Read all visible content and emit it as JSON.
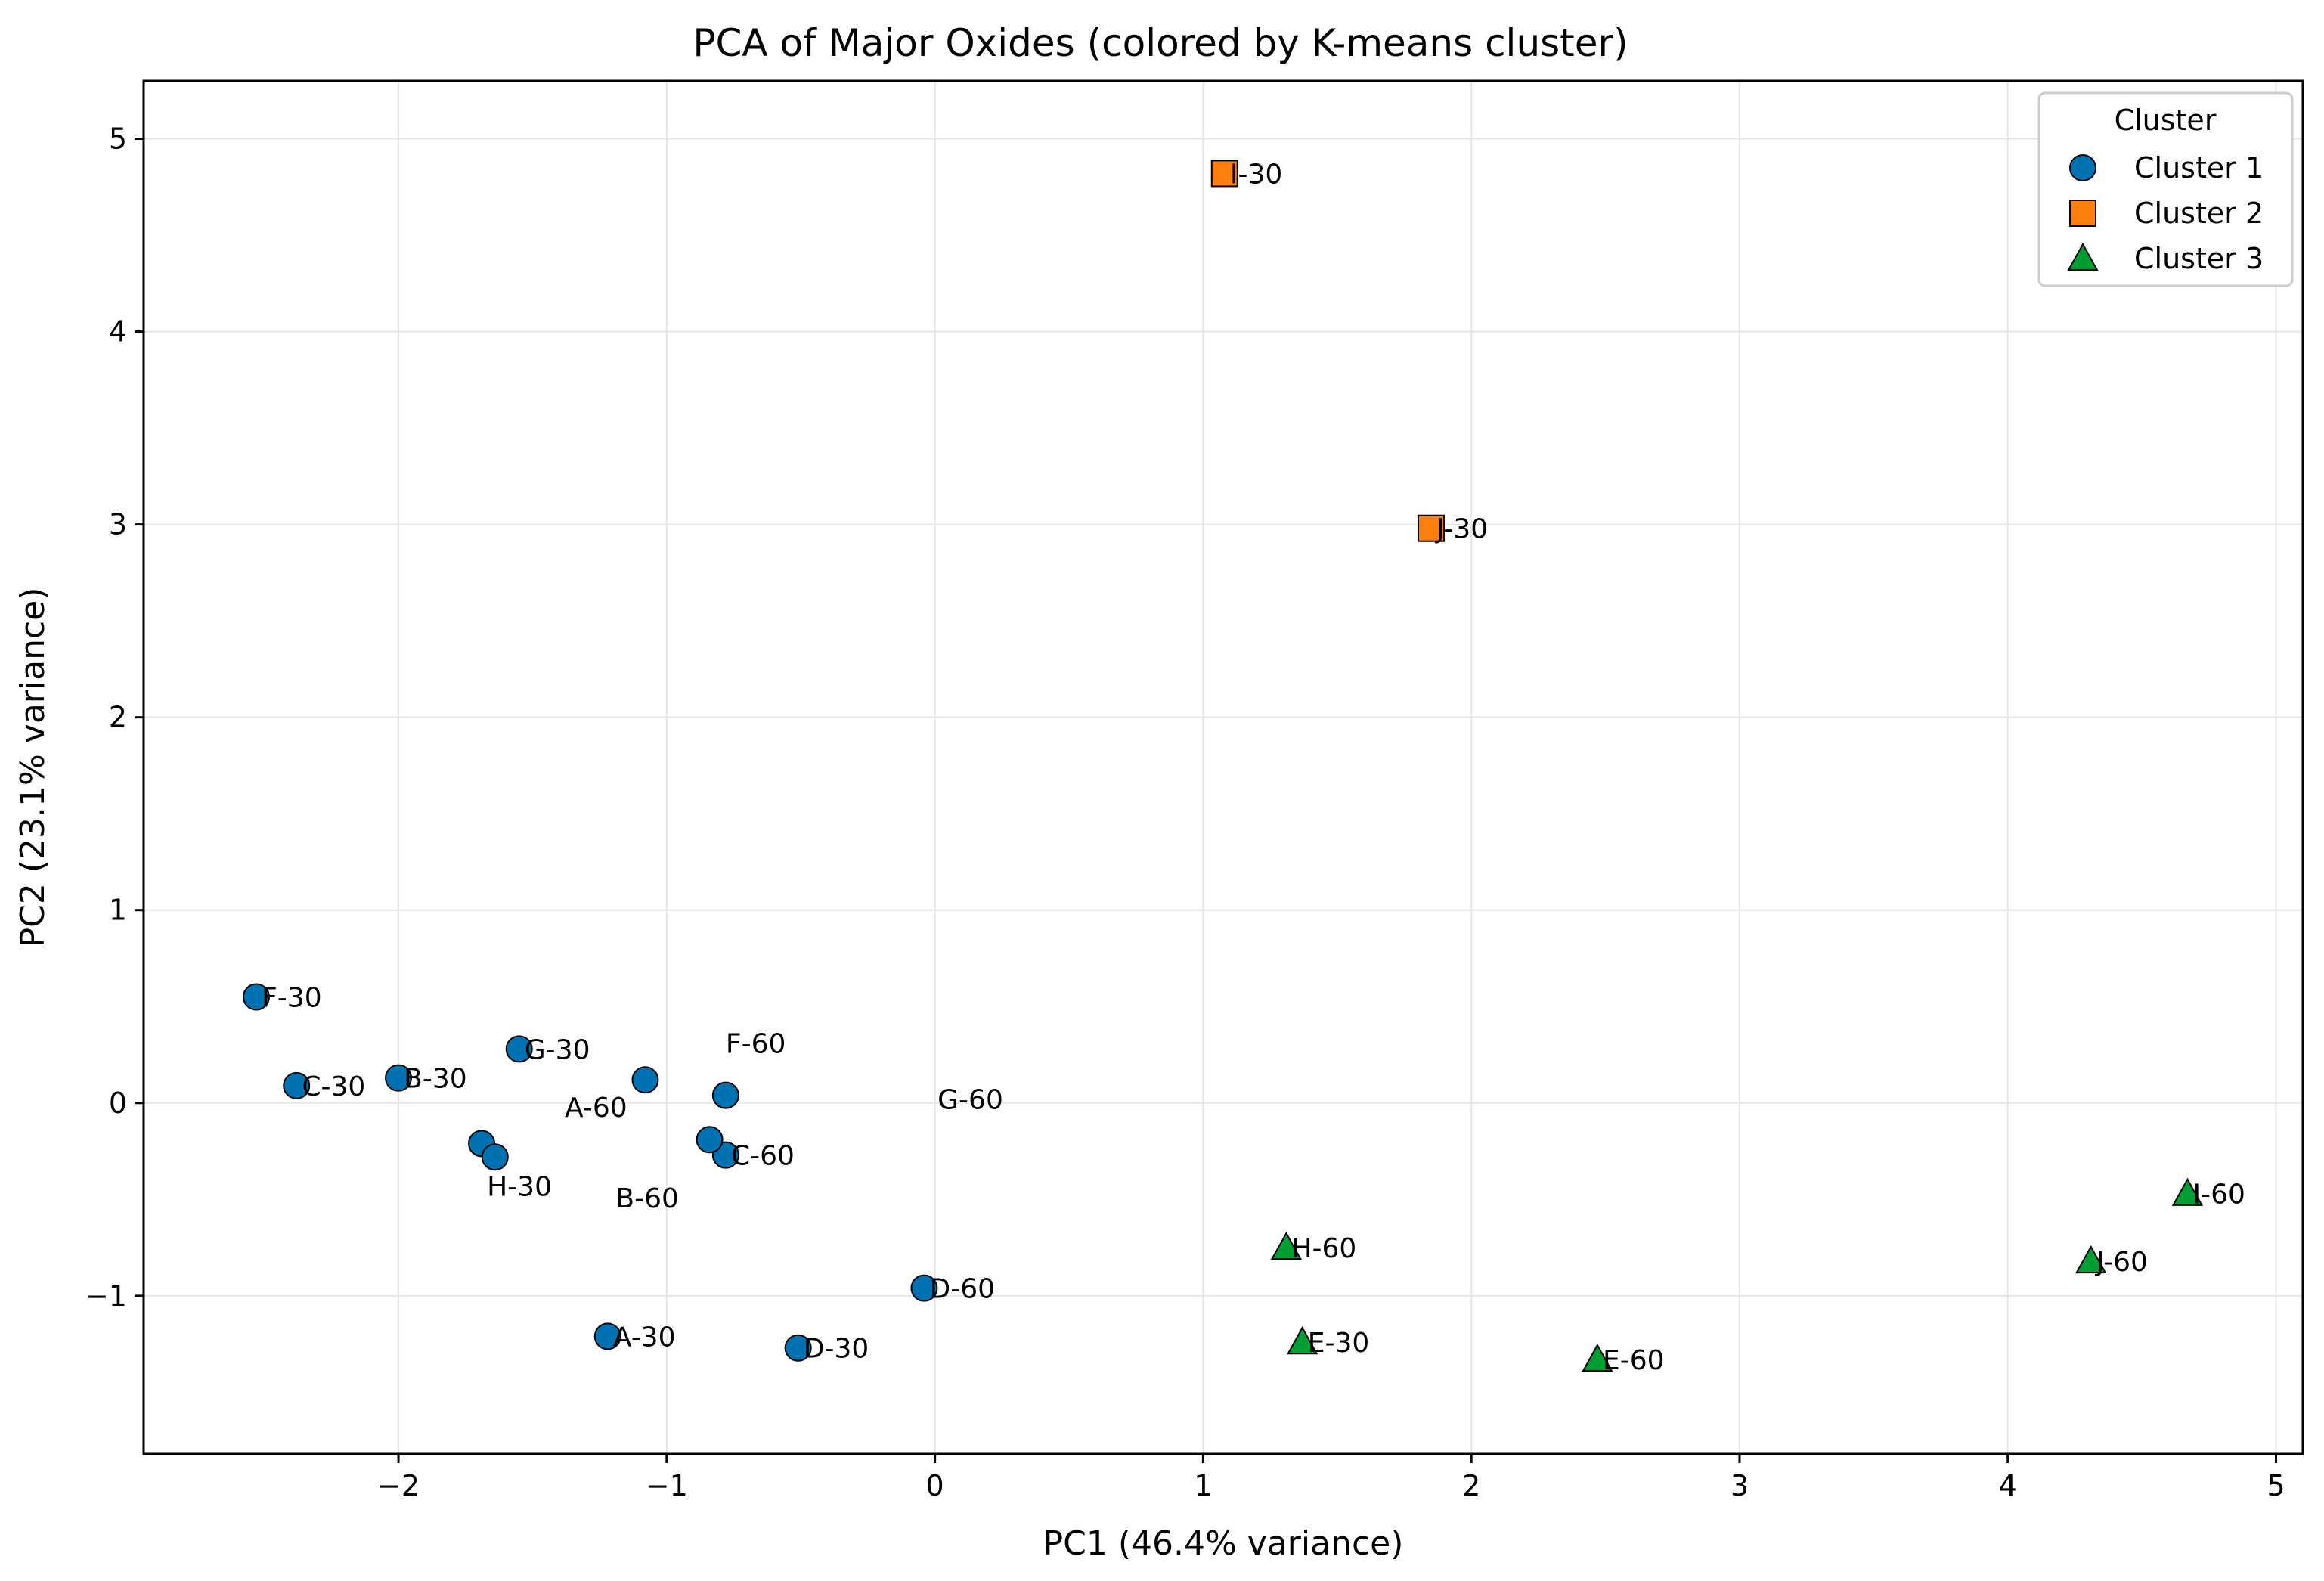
{
  "chart_data": {
    "type": "scatter",
    "title": "PCA of Major Oxides (colored by K-means cluster)",
    "xlabel": "PC1 (46.4% variance)",
    "ylabel": "PC2 (23.1% variance)",
    "xlim": [
      -2.95,
      5.1
    ],
    "ylim": [
      -1.82,
      5.3
    ],
    "xticks": [
      -2,
      -1,
      0,
      1,
      2,
      3,
      4,
      5
    ],
    "xtick_labels": [
      "−2",
      "−1",
      "0",
      "1",
      "2",
      "3",
      "4",
      "5"
    ],
    "yticks": [
      -1,
      0,
      1,
      2,
      3,
      4,
      5
    ],
    "ytick_labels": [
      "−1",
      "0",
      "1",
      "2",
      "3",
      "4",
      "5"
    ],
    "grid": true,
    "legend": {
      "title": "Cluster",
      "placement": "top-right",
      "entries": [
        "Cluster 1",
        "Cluster 2",
        "Cluster 3"
      ]
    },
    "clusters": [
      {
        "name": "Cluster 1",
        "marker": "circle",
        "color": "#0072b2",
        "points": [
          {
            "label": "F-30",
            "x": -2.53,
            "y": 0.55,
            "label_dx": 0.02,
            "label_dy": 0.0
          },
          {
            "label": "C-30",
            "x": -2.38,
            "y": 0.09,
            "label_dx": 0.02,
            "label_dy": 0.0
          },
          {
            "label": "B-30",
            "x": -2.0,
            "y": 0.13,
            "label_dx": 0.02,
            "label_dy": 0.0
          },
          {
            "label": "G-30",
            "x": -1.55,
            "y": 0.28,
            "label_dx": 0.02,
            "label_dy": 0.0
          },
          {
            "label": "A-60",
            "x": -1.08,
            "y": 0.12,
            "label_dx": -0.3,
            "label_dy": -0.14
          },
          {
            "label": "F-60",
            "x": -0.78,
            "y": 0.04,
            "label_dx": 0.0,
            "label_dy": 0.27
          },
          {
            "label": "C-60",
            "x": -0.78,
            "y": -0.27,
            "label_dx": 0.02,
            "label_dy": 0.0
          },
          {
            "label": "B-60",
            "x": -0.84,
            "y": -0.19,
            "label_dx": -0.35,
            "label_dy": -0.3
          },
          {
            "label": "H-30",
            "x": -1.69,
            "y": -0.21,
            "label_dx": 0.02,
            "label_dy": -0.22
          },
          {
            "label": "G-60",
            "x": -1.64,
            "y": -0.28,
            "label_dx": 1.65,
            "label_dy": 0.3
          },
          {
            "label": "D-60",
            "x": -0.04,
            "y": -0.96,
            "label_dx": 0.02,
            "label_dy": 0.0
          },
          {
            "label": "A-30",
            "x": -1.22,
            "y": -1.21,
            "label_dx": 0.02,
            "label_dy": 0.0
          },
          {
            "label": "D-30",
            "x": -0.51,
            "y": -1.27,
            "label_dx": 0.02,
            "label_dy": 0.0
          }
        ]
      },
      {
        "name": "Cluster 2",
        "marker": "square",
        "color": "#ff7f0e",
        "points": [
          {
            "label": "I-30",
            "x": 1.08,
            "y": 4.82,
            "label_dx": 0.02,
            "label_dy": 0.0
          },
          {
            "label": "J-30",
            "x": 1.85,
            "y": 2.98,
            "label_dx": 0.02,
            "label_dy": 0.0
          }
        ]
      },
      {
        "name": "Cluster 3",
        "marker": "triangle",
        "color": "#009e33",
        "points": [
          {
            "label": "H-60",
            "x": 1.31,
            "y": -0.75,
            "label_dx": 0.02,
            "label_dy": 0.0
          },
          {
            "label": "E-30",
            "x": 1.37,
            "y": -1.24,
            "label_dx": 0.02,
            "label_dy": 0.0
          },
          {
            "label": "E-60",
            "x": 2.47,
            "y": -1.33,
            "label_dx": 0.02,
            "label_dy": 0.0
          },
          {
            "label": "I-60",
            "x": 4.67,
            "y": -0.47,
            "label_dx": 0.02,
            "label_dy": 0.0
          },
          {
            "label": "J-60",
            "x": 4.31,
            "y": -0.82,
            "label_dx": 0.02,
            "label_dy": 0.0
          }
        ]
      }
    ]
  }
}
